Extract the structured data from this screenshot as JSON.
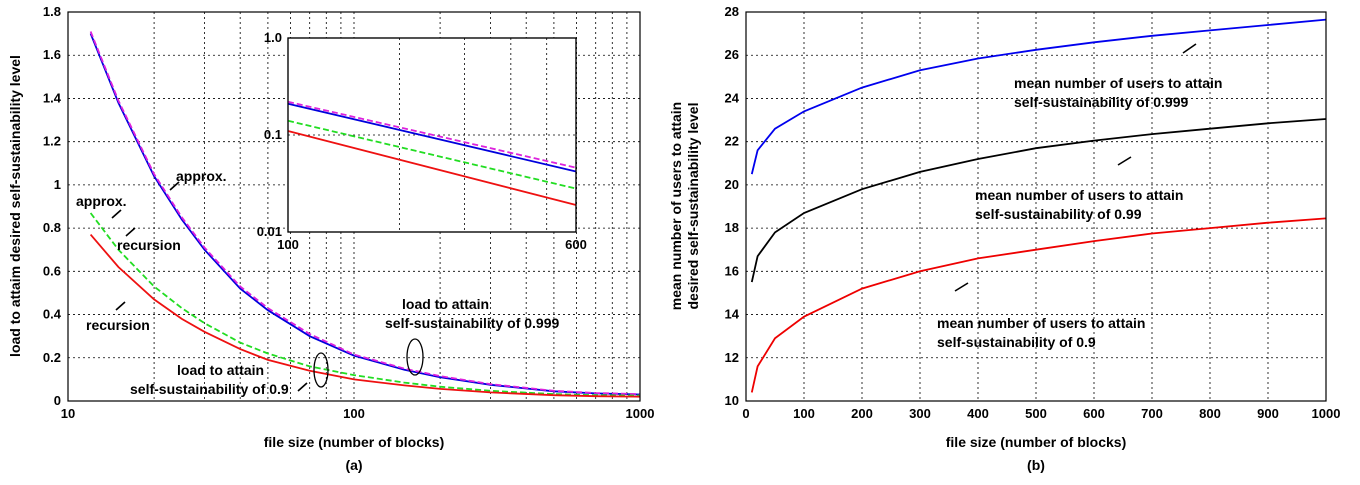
{
  "chart_data": [
    {
      "panel_label": "(a)",
      "type": "line",
      "xlabel": "file size (number of blocks)",
      "ylabel": "load to attaim desired self-sustainability level",
      "xscale": "log",
      "xlim": [
        10,
        1000
      ],
      "ylim": [
        0,
        1.8
      ],
      "x_ticks": [
        "10",
        "100",
        "1000"
      ],
      "y_ticks": [
        "0",
        "0.2",
        "0.4",
        "0.6",
        "0.8",
        "1",
        "1.2",
        "1.4",
        "1.6",
        "1.8"
      ],
      "grid": true,
      "series": [
        {
          "color": "#0000dd",
          "dash": false,
          "x": [
            12,
            15,
            20,
            25,
            30,
            40,
            50,
            70,
            100,
            150,
            200,
            300,
            500,
            700,
            1000
          ],
          "y": [
            1.7,
            1.38,
            1.04,
            0.84,
            0.7,
            0.52,
            0.42,
            0.3,
            0.21,
            0.145,
            0.11,
            0.075,
            0.045,
            0.035,
            0.03
          ]
        },
        {
          "color": "#dd22dd",
          "dash": true,
          "x": [
            12,
            15,
            20,
            25,
            30,
            40,
            50,
            70,
            100,
            150,
            200,
            300,
            500,
            700,
            1000
          ],
          "y": [
            1.71,
            1.39,
            1.05,
            0.85,
            0.71,
            0.53,
            0.43,
            0.31,
            0.215,
            0.15,
            0.115,
            0.078,
            0.047,
            0.037,
            0.032
          ]
        },
        {
          "color": "#22dd22",
          "dash": true,
          "x": [
            12,
            15,
            20,
            25,
            30,
            40,
            50,
            70,
            100,
            150,
            200,
            300,
            500,
            700,
            1000
          ],
          "y": [
            0.87,
            0.7,
            0.53,
            0.43,
            0.36,
            0.27,
            0.22,
            0.16,
            0.12,
            0.085,
            0.066,
            0.047,
            0.032,
            0.027,
            0.025
          ]
        },
        {
          "color": "#ee1111",
          "dash": false,
          "x": [
            12,
            15,
            20,
            25,
            30,
            40,
            50,
            70,
            100,
            150,
            200,
            300,
            500,
            700,
            1000
          ],
          "y": [
            0.77,
            0.62,
            0.47,
            0.38,
            0.32,
            0.24,
            0.19,
            0.14,
            0.1,
            0.072,
            0.056,
            0.04,
            0.027,
            0.022,
            0.02
          ]
        }
      ],
      "annotations": [
        "approx.",
        "approx.",
        "recursion",
        "recursion",
        "load to attain",
        "self-sustainability of 0.999",
        "load to attain",
        "self-sustainability of 0.9"
      ],
      "inset": {
        "xscale": "log",
        "yscale": "log",
        "xlim": [
          100,
          600
        ],
        "ylim": [
          0.01,
          1.0
        ],
        "x_ticks": [
          "100",
          "600"
        ],
        "y_ticks": [
          "0.01",
          "0.1",
          "1.0"
        ],
        "series": [
          {
            "color": "#0000dd",
            "dash": false,
            "x": [
              100,
              600
            ],
            "y": [
              0.21,
              0.042
            ]
          },
          {
            "color": "#dd22dd",
            "dash": true,
            "x": [
              100,
              600
            ],
            "y": [
              0.22,
              0.046
            ]
          },
          {
            "color": "#22dd22",
            "dash": true,
            "x": [
              100,
              600
            ],
            "y": [
              0.14,
              0.028
            ]
          },
          {
            "color": "#ee1111",
            "dash": false,
            "x": [
              100,
              600
            ],
            "y": [
              0.11,
              0.019
            ]
          }
        ]
      }
    },
    {
      "panel_label": "(b)",
      "type": "line",
      "xlabel": "file size (number of blocks)",
      "ylabel_lines": [
        "mean number of users to attain",
        "desired self-sustainability level"
      ],
      "xlim": [
        0,
        1000
      ],
      "ylim": [
        10,
        28
      ],
      "x_ticks": [
        "0",
        "100",
        "200",
        "300",
        "400",
        "500",
        "600",
        "700",
        "800",
        "900",
        "1000"
      ],
      "y_ticks": [
        "10",
        "12",
        "14",
        "16",
        "18",
        "20",
        "22",
        "24",
        "26",
        "28"
      ],
      "grid": true,
      "series": [
        {
          "color": "#0000ee",
          "x": [
            10,
            20,
            50,
            100,
            200,
            300,
            400,
            500,
            600,
            700,
            800,
            900,
            1000
          ],
          "y": [
            20.5,
            21.6,
            22.6,
            23.4,
            24.5,
            25.3,
            25.85,
            26.25,
            26.6,
            26.9,
            27.15,
            27.4,
            27.65
          ]
        },
        {
          "color": "#000000",
          "x": [
            10,
            20,
            50,
            100,
            200,
            300,
            400,
            500,
            600,
            700,
            800,
            900,
            1000
          ],
          "y": [
            15.5,
            16.7,
            17.8,
            18.7,
            19.8,
            20.6,
            21.2,
            21.7,
            22.05,
            22.35,
            22.6,
            22.85,
            23.05
          ]
        },
        {
          "color": "#ee0000",
          "x": [
            10,
            20,
            50,
            100,
            200,
            300,
            400,
            500,
            600,
            700,
            800,
            900,
            1000
          ],
          "y": [
            10.4,
            11.6,
            12.9,
            13.9,
            15.2,
            16.0,
            16.6,
            17.0,
            17.4,
            17.75,
            18.0,
            18.25,
            18.45
          ]
        }
      ],
      "annotations": [
        "mean number of users to attain",
        "self-sustainability of 0.999",
        "mean number of users to attain",
        "self-sustainability of 0.99",
        "mean number of users to attain",
        "self-sustainability of 0.9"
      ]
    }
  ]
}
